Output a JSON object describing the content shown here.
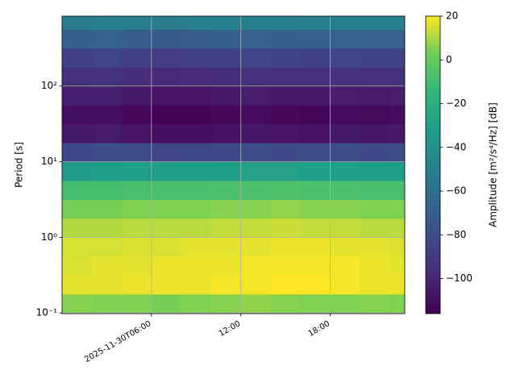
{
  "chart_data": {
    "type": "heatmap",
    "colormap": "viridis",
    "y_label": "Period [s]",
    "colorbar_label": "Amplitude [m²/s⁴/Hz] [dB]",
    "x": [
      1,
      3,
      5,
      7,
      9,
      11,
      13,
      15,
      17,
      19,
      21,
      23
    ],
    "y": [
      0.1334,
      0.2371,
      0.4217,
      0.7499,
      1.334,
      2.371,
      4.217,
      7.499,
      13.34,
      23.71,
      42.17,
      74.99,
      133.4,
      237.1,
      421.7,
      749.9
    ],
    "z": [
      [
        6,
        5,
        5,
        4,
        5,
        6,
        7,
        6,
        5,
        5,
        6,
        5
      ],
      [
        17,
        17,
        18,
        18,
        18,
        19,
        19,
        20,
        20,
        19,
        18,
        18
      ],
      [
        16,
        17,
        17,
        18,
        18,
        18,
        19,
        19,
        19,
        19,
        18,
        17
      ],
      [
        15,
        15,
        16,
        16,
        17,
        17,
        17,
        18,
        18,
        17,
        17,
        16
      ],
      [
        11,
        11,
        12,
        12,
        12,
        13,
        13,
        14,
        13,
        13,
        12,
        12
      ],
      [
        4,
        4,
        5,
        5,
        5,
        6,
        6,
        7,
        6,
        6,
        5,
        5
      ],
      [
        -9,
        -9,
        -8,
        -8,
        -8,
        -7,
        -7,
        -6,
        -7,
        -7,
        -8,
        -8
      ],
      [
        -32,
        -31,
        -30,
        -30,
        -31,
        -30,
        -29,
        -29,
        -30,
        -30,
        -31,
        -31
      ],
      [
        -82,
        -80,
        -81,
        -84,
        -83,
        -82,
        -80,
        -82,
        -81,
        -80,
        -82,
        -81
      ],
      [
        -106,
        -105,
        -108,
        -110,
        -110,
        -109,
        -107,
        -108,
        -109,
        -106,
        -107,
        -106
      ],
      [
        -110,
        -110,
        -113,
        -115,
        -115,
        -113,
        -111,
        -113,
        -114,
        -111,
        -112,
        -111
      ],
      [
        -103,
        -103,
        -106,
        -108,
        -108,
        -106,
        -104,
        -106,
        -106,
        -104,
        -105,
        -104
      ],
      [
        -94,
        -93,
        -96,
        -98,
        -97,
        -96,
        -94,
        -95,
        -95,
        -93,
        -95,
        -94
      ],
      [
        -86,
        -84,
        -87,
        -88,
        -87,
        -86,
        -84,
        -85,
        -86,
        -84,
        -85,
        -85
      ],
      [
        -70,
        -68,
        -71,
        -72,
        -71,
        -70,
        -69,
        -70,
        -70,
        -68,
        -69,
        -69
      ],
      [
        -52,
        -50,
        -51,
        -52,
        -50,
        -50,
        -49,
        -50,
        -51,
        -49,
        -50,
        -50
      ]
    ],
    "xlim": [
      0,
      23
    ],
    "xticks": [
      {
        "value": 6,
        "label": "2025-11-30T06:00"
      },
      {
        "value": 12,
        "label": "12:00"
      },
      {
        "value": 18,
        "label": "18:00"
      }
    ],
    "ylim": [
      0.098,
      840
    ],
    "y_log": true,
    "yticks": [
      {
        "value": 0.1,
        "label": "10⁻¹"
      },
      {
        "value": 1,
        "label": "10⁰"
      },
      {
        "value": 10,
        "label": "10¹"
      },
      {
        "value": 100,
        "label": "10²"
      }
    ],
    "zlim": [
      -116,
      20
    ],
    "zticks": [
      {
        "value": -100,
        "label": "−100"
      },
      {
        "value": -80,
        "label": "−80"
      },
      {
        "value": -60,
        "label": "−60"
      },
      {
        "value": -40,
        "label": "−40"
      },
      {
        "value": -20,
        "label": "−20"
      },
      0,
      20
    ],
    "grid": true
  }
}
